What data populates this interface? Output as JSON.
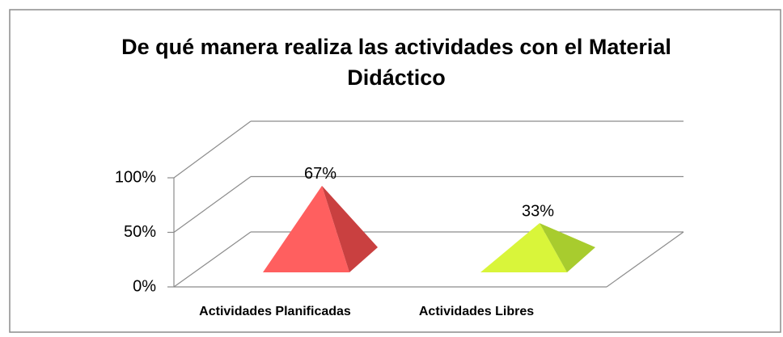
{
  "chart_data": {
    "type": "pyramid3d",
    "title": "De qué manera realiza  las actividades con el Material Didáctico",
    "title_lines": [
      "De qué manera realiza  las actividades con el Material",
      "Didáctico"
    ],
    "categories": [
      "Actividades Planificadas",
      "Actividades Libres"
    ],
    "values": [
      67,
      33
    ],
    "value_labels": [
      "67%",
      "33%"
    ],
    "colors": [
      "#ff5f5f",
      "#d9f53a"
    ],
    "side_colors": [
      "#c94040",
      "#a8cc2e"
    ],
    "ylim": [
      0,
      100
    ],
    "yticks": [
      {
        "value": 0,
        "label": "0%"
      },
      {
        "value": 50,
        "label": "50%"
      },
      {
        "value": 100,
        "label": "100%"
      }
    ],
    "grid": true
  }
}
